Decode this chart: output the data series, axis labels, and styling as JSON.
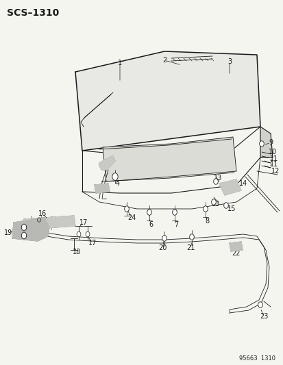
{
  "title": "SCS–1310",
  "footer": "95663  1310",
  "bg": "#f5f5f0",
  "lc": "#1a1a1a",
  "fig_w": 4.14,
  "fig_h": 5.33,
  "dpi": 100
}
